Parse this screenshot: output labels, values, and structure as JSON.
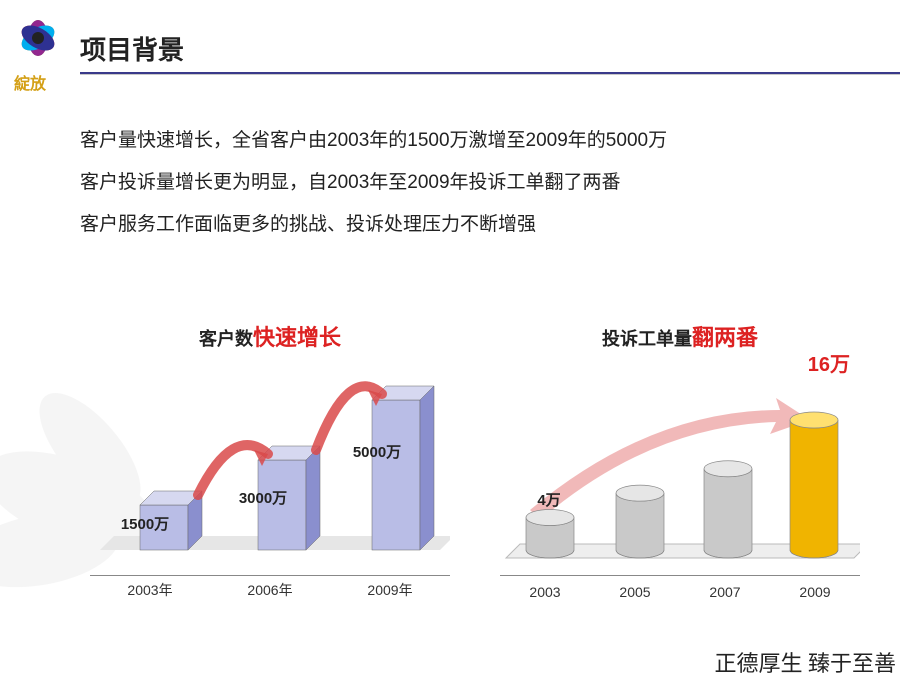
{
  "logo_brand": "綻放",
  "title": "项目背景",
  "paragraphs": [
    "客户量快速增长，全省客户由2003年的1500万激增至2009年的5000万",
    "客户投诉量增长更为明显，自2003年至2009年投诉工单翻了两番",
    "客户服务工作面临更多的挑战、投诉处理压力不断增强"
  ],
  "chart1": {
    "type": "bar-3d",
    "title_prefix": "客户数",
    "title_highlight": "快速增长",
    "categories": [
      "2003年",
      "2006年",
      "2009年"
    ],
    "values": [
      1500,
      3000,
      5000
    ],
    "value_labels": [
      "1500万",
      "3000万",
      "5000万"
    ],
    "bar_color_face": "#b9bde6",
    "bar_color_side": "#8a8fce",
    "bar_color_top": "#d6d8f0",
    "arrow_color": "#d94a4a",
    "base_color": "#e6e6e6"
  },
  "chart2": {
    "type": "cylinder-3d",
    "title_prefix": "投诉工单量",
    "title_highlight": "翻两番",
    "callout": "16万",
    "categories": [
      "2003",
      "2005",
      "2007",
      "2009"
    ],
    "values": [
      4,
      7,
      10,
      16
    ],
    "value_labels": [
      "4万",
      "",
      "",
      ""
    ],
    "cyl_colors": [
      "#c9c9c9",
      "#c9c9c9",
      "#c9c9c9",
      "#f0b400"
    ],
    "cyl_top_colors": [
      "#e6e6e6",
      "#e6e6e6",
      "#e6e6e6",
      "#ffe070"
    ],
    "arrow_color": "#e88a8a",
    "base_color": "#eeeeee"
  },
  "footer": "正德厚生  臻于至善",
  "colors": {
    "hr_primary": "#3a3a8a",
    "hl_red": "#d22"
  }
}
